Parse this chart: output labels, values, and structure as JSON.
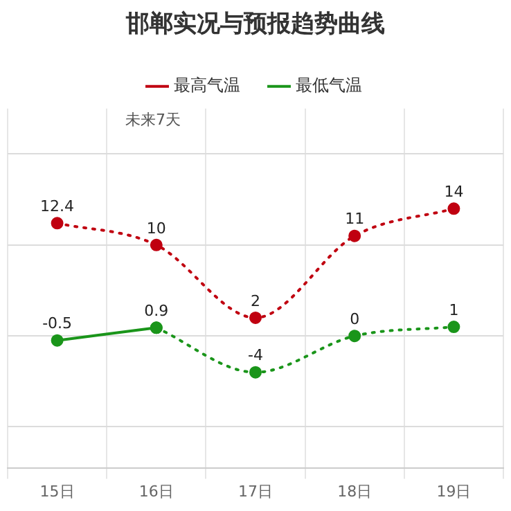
{
  "chart_data": {
    "type": "line",
    "title": "邯郸实况与预报趋势曲线",
    "annotations": [
      "未来7天"
    ],
    "categories": [
      "15日",
      "16日",
      "17日",
      "18日",
      "19日"
    ],
    "series": [
      {
        "name": "最高气温",
        "color": "#c00010",
        "values": [
          12.4,
          10,
          2,
          11,
          14
        ],
        "value_labels": [
          "12.4",
          "10",
          "2",
          "11",
          "14"
        ],
        "line_style": "dotted",
        "marker": "circle"
      },
      {
        "name": "最低气温",
        "color": "#1a951a",
        "values": [
          null,
          0.9,
          -4,
          0,
          1
        ],
        "value_labels": [
          null,
          null,
          "-4",
          "0",
          "1"
        ],
        "line_style": "dotted",
        "marker": "circle"
      },
      {
        "color": "#1a951a",
        "values": [
          -0.5,
          0.9,
          null,
          null,
          null
        ],
        "value_labels": [
          "-0.5",
          "0.9",
          null,
          null,
          null
        ],
        "line_style": "solid",
        "marker": "circle"
      }
    ],
    "ylim": [
      -14.5,
      25
    ],
    "yticks": [
      {
        "value": -10,
        "label": null
      },
      {
        "value": 0,
        "label": null
      },
      {
        "value": 10,
        "label": null
      },
      {
        "value": 20,
        "label": null
      }
    ],
    "tick_labels": "x",
    "grid": true,
    "legend": "top"
  }
}
